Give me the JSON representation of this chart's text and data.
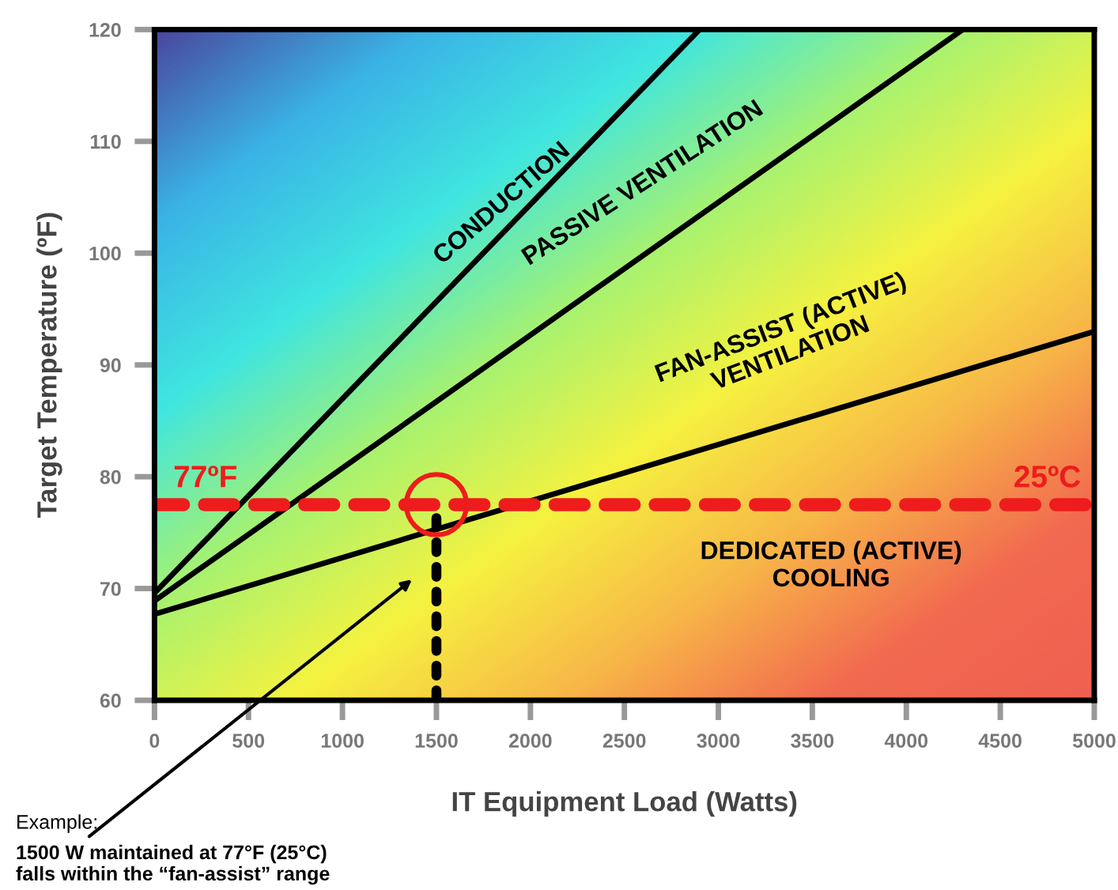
{
  "chart_data": {
    "type": "line",
    "xlabel": "IT Equipment Load (Watts)",
    "ylabel": "Target Temperature (ºF)",
    "xlim": [
      0,
      5000
    ],
    "ylim": [
      60,
      120
    ],
    "xticks": [
      0,
      500,
      1000,
      1500,
      2000,
      2500,
      3000,
      3500,
      4000,
      4500,
      5000
    ],
    "yticks": [
      60,
      70,
      80,
      90,
      100,
      110,
      120
    ],
    "grid": false,
    "legend": false,
    "marker": "none",
    "series": [
      {
        "color": "#000000",
        "x": [
          0,
          2900
        ],
        "values": [
          69.6,
          120
        ],
        "line_style": "solid"
      },
      {
        "color": "#000000",
        "x": [
          0,
          4300
        ],
        "values": [
          68.9,
          120
        ],
        "line_style": "solid"
      },
      {
        "color": "#000000",
        "x": [
          0,
          5000
        ],
        "values": [
          67.7,
          93.0
        ],
        "line_style": "solid"
      },
      {
        "color": "#000000",
        "x": [
          1500,
          1500
        ],
        "values": [
          60,
          76.3
        ],
        "line_style": "dotted"
      }
    ],
    "ref_lines": [
      {
        "axis": "y",
        "value": 77.5,
        "label": "77ºF",
        "color": "#ee1c1c",
        "line_style": "dashed"
      }
    ],
    "annotations": [
      "CONDUCTION",
      "PASSIVE VENTILATION",
      "FAN-ASSIST (ACTIVE)\nVENTILATION",
      "DEDICATED (ACTIVE)\nCOOLING",
      {
        "text": "25ºC",
        "x": 4750,
        "y": 77.5
      },
      "Example:",
      "1500 W maintained at 77°F (25°C)\nfalls within the “fan-assist” range"
    ]
  }
}
